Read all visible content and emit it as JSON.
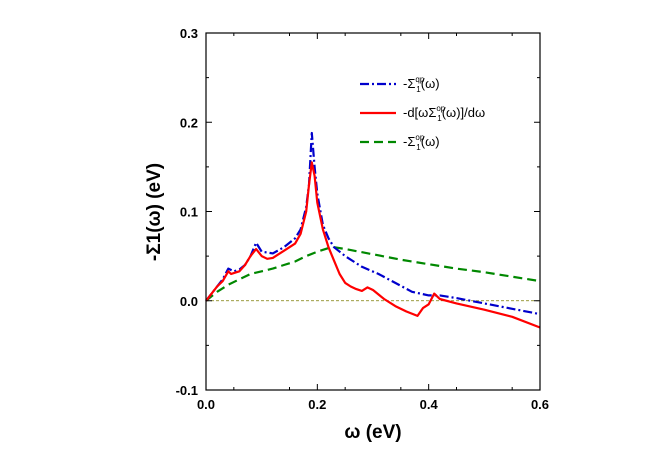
{
  "chart_data": {
    "type": "line",
    "title": "",
    "xlabel": "ω (eV)",
    "ylabel": "-Σ1(ω) (eV)",
    "xlim": [
      0.0,
      0.6
    ],
    "ylim": [
      -0.1,
      0.3
    ],
    "x_ticks": [
      "0.0",
      "0.2",
      "0.4",
      "0.6"
    ],
    "y_ticks": [
      "-0.1",
      "0.0",
      "0.1",
      "0.2",
      "0.3"
    ],
    "legend_position": "top-right",
    "zero_line": true,
    "series": [
      {
        "name": "-Σ^qp_1(ω)",
        "label_main": "-Σ",
        "label_sup": "qp",
        "label_sub": "1",
        "label_tail": "(ω)",
        "color": "#0000cc",
        "style": "dash-dot",
        "x": [
          0.0,
          0.01,
          0.02,
          0.03,
          0.04,
          0.05,
          0.06,
          0.07,
          0.08,
          0.09,
          0.1,
          0.12,
          0.14,
          0.16,
          0.17,
          0.18,
          0.185,
          0.19,
          0.195,
          0.2,
          0.21,
          0.22,
          0.23,
          0.25,
          0.28,
          0.31,
          0.34,
          0.37,
          0.4,
          0.42,
          0.45,
          0.5,
          0.55,
          0.6
        ],
        "y": [
          0.0,
          0.008,
          0.016,
          0.024,
          0.036,
          0.033,
          0.035,
          0.04,
          0.05,
          0.065,
          0.055,
          0.053,
          0.06,
          0.07,
          0.08,
          0.105,
          0.13,
          0.188,
          0.15,
          0.12,
          0.085,
          0.07,
          0.06,
          0.05,
          0.038,
          0.03,
          0.02,
          0.01,
          0.006,
          0.006,
          0.003,
          -0.003,
          -0.009,
          -0.015
        ]
      },
      {
        "name": "-d[ωΣ^op_1(ω)]/dω",
        "label_main": "-d[ωΣ",
        "label_sup": "op",
        "label_sub": "1",
        "label_tail": "(ω)]/dω",
        "color": "#ff0000",
        "style": "solid",
        "x": [
          0.0,
          0.01,
          0.02,
          0.03,
          0.04,
          0.045,
          0.05,
          0.06,
          0.07,
          0.08,
          0.09,
          0.1,
          0.11,
          0.12,
          0.14,
          0.16,
          0.17,
          0.18,
          0.185,
          0.19,
          0.195,
          0.2,
          0.21,
          0.22,
          0.23,
          0.24,
          0.25,
          0.26,
          0.27,
          0.28,
          0.29,
          0.3,
          0.32,
          0.34,
          0.36,
          0.38,
          0.39,
          0.4,
          0.41,
          0.42,
          0.45,
          0.5,
          0.55,
          0.6
        ],
        "y": [
          0.0,
          0.008,
          0.016,
          0.022,
          0.033,
          0.03,
          0.031,
          0.033,
          0.04,
          0.05,
          0.058,
          0.05,
          0.047,
          0.048,
          0.056,
          0.064,
          0.075,
          0.1,
          0.13,
          0.155,
          0.14,
          0.11,
          0.08,
          0.06,
          0.045,
          0.03,
          0.02,
          0.016,
          0.013,
          0.011,
          0.015,
          0.012,
          0.002,
          -0.006,
          -0.012,
          -0.017,
          -0.008,
          -0.004,
          0.008,
          0.002,
          -0.003,
          -0.01,
          -0.018,
          -0.03
        ]
      },
      {
        "name": "-Σ^op_1(ω)",
        "label_main": "-Σ",
        "label_sup": "op",
        "label_sub": "1",
        "label_tail": "(ω)",
        "color": "#008800",
        "style": "dashed",
        "x": [
          0.0,
          0.02,
          0.04,
          0.06,
          0.08,
          0.1,
          0.12,
          0.14,
          0.16,
          0.18,
          0.2,
          0.22,
          0.23,
          0.25,
          0.3,
          0.35,
          0.4,
          0.45,
          0.5,
          0.55,
          0.6
        ],
        "y": [
          0.0,
          0.01,
          0.018,
          0.024,
          0.03,
          0.033,
          0.036,
          0.04,
          0.044,
          0.05,
          0.055,
          0.059,
          0.06,
          0.058,
          0.052,
          0.046,
          0.041,
          0.036,
          0.032,
          0.027,
          0.022
        ]
      }
    ]
  }
}
